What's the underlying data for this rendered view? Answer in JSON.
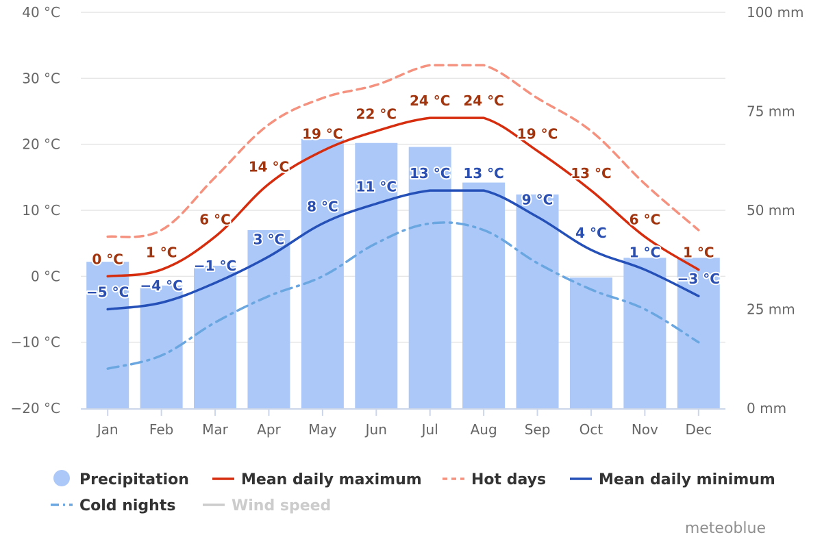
{
  "credit": "meteoblue",
  "chart_data": {
    "type": "bar+line",
    "categories": [
      "Jan",
      "Feb",
      "Mar",
      "Apr",
      "May",
      "Jun",
      "Jul",
      "Aug",
      "Sep",
      "Oct",
      "Nov",
      "Dec"
    ],
    "y_left": {
      "min": -20,
      "max": 40,
      "step": 10,
      "unit": "°C",
      "ticks": [
        "40 °C",
        "30 °C",
        "20 °C",
        "10 °C",
        "0 °C",
        "−10 °C",
        "−20 °C"
      ]
    },
    "y_right": {
      "min": 0,
      "max": 100,
      "step": 25,
      "unit": "mm",
      "ticks": [
        "100 mm",
        "75 mm",
        "50 mm",
        "25 mm",
        "0 mm"
      ]
    },
    "series": [
      {
        "name": "Precipitation",
        "kind": "bar",
        "axis": "right",
        "color": "#abc8f9",
        "values": [
          37,
          31,
          36,
          45,
          68,
          67,
          66,
          57,
          54,
          33,
          38,
          38
        ]
      },
      {
        "name": "Mean daily maximum",
        "kind": "line",
        "axis": "left",
        "color": "#d62d0f",
        "dash": "solid",
        "label_color": "#a0350f",
        "values": [
          0,
          1,
          6,
          14,
          19,
          22,
          24,
          24,
          19,
          13,
          6,
          1
        ],
        "labels": [
          "0 °C",
          "1 °C",
          "6 °C",
          "14 °C",
          "19 °C",
          "22 °C",
          "24 °C",
          "24 °C",
          "19 °C",
          "13 °C",
          "6 °C",
          "1 °C"
        ]
      },
      {
        "name": "Hot days",
        "kind": "line",
        "axis": "left",
        "color": "#f4927f",
        "dash": "dashed",
        "values": [
          6,
          7,
          15,
          23,
          27,
          29,
          32,
          32,
          27,
          22,
          14,
          7
        ]
      },
      {
        "name": "Mean daily minimum",
        "kind": "line",
        "axis": "left",
        "color": "#2450b8",
        "dash": "solid",
        "label_color": "#2a4fb0",
        "values": [
          -5,
          -4,
          -1,
          3,
          8,
          11,
          13,
          13,
          9,
          4,
          1,
          -3
        ],
        "labels": [
          "−5 °C",
          "−4 °C",
          "−1 °C",
          "3 °C",
          "8 °C",
          "11 °C",
          "13 °C",
          "13 °C",
          "9 °C",
          "4 °C",
          "1 °C",
          "−3 °C"
        ]
      },
      {
        "name": "Cold nights",
        "kind": "line",
        "axis": "left",
        "color": "#6aa6e0",
        "dash": "dashdot",
        "values": [
          -14,
          -12,
          -7,
          -3,
          0,
          5,
          8,
          7,
          2,
          -2,
          -5,
          -10
        ]
      },
      {
        "name": "Wind speed",
        "kind": "line",
        "axis": "left",
        "color": "#cccccc",
        "hidden": true
      }
    ],
    "grid": true,
    "legend_position": "bottom"
  }
}
